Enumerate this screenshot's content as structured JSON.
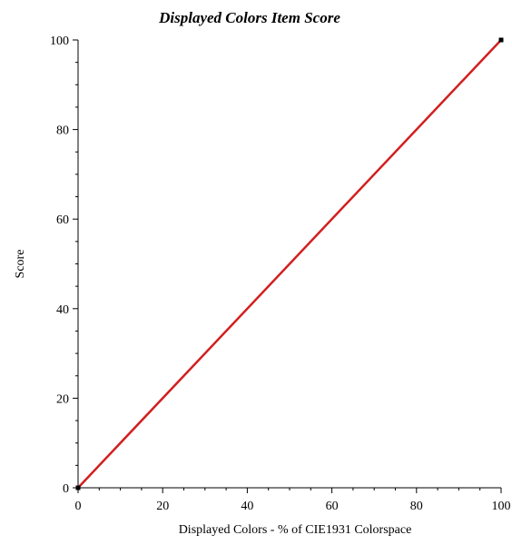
{
  "chart_data": {
    "type": "line",
    "title": "Displayed Colors Item Score",
    "xlabel": "Displayed Colors - % of CIE1931 Colorspace",
    "ylabel": "Score",
    "xlim": [
      0,
      100
    ],
    "ylim": [
      0,
      100
    ],
    "x_ticks": [
      0,
      20,
      40,
      60,
      80,
      100
    ],
    "y_ticks": [
      0,
      20,
      40,
      60,
      80,
      100
    ],
    "x_tick_labels": [
      "0",
      "20",
      "40",
      "60",
      "80",
      "100"
    ],
    "y_tick_labels": [
      "0",
      "20",
      "40",
      "60",
      "80",
      "100"
    ],
    "grid": false,
    "legend": "none",
    "series": [
      {
        "color": "#d21f1f",
        "x": [
          0,
          100
        ],
        "y": [
          0,
          100
        ]
      }
    ],
    "endpoint_markers": [
      {
        "x": 0,
        "y": 0
      },
      {
        "x": 100,
        "y": 100
      }
    ]
  }
}
